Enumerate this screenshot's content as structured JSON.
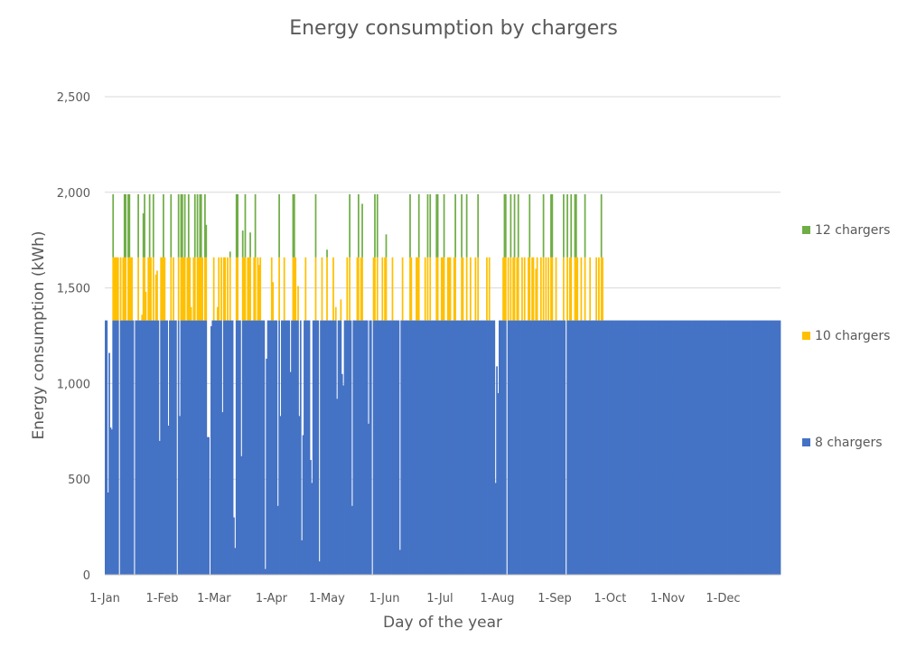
{
  "chart_data": {
    "type": "area",
    "stacked": true,
    "title": "Energy consumption by chargers",
    "xlabel": "Day of the year",
    "ylabel": "Energy consumption (kWh)",
    "ylim": [
      0,
      2500
    ],
    "yticks": [
      0,
      500,
      1000,
      1500,
      2000,
      2500
    ],
    "ytick_labels": [
      "0",
      "500",
      "1,000",
      "1,500",
      "2,000",
      "2,500"
    ],
    "xlim": [
      1,
      365
    ],
    "xticks": [
      {
        "day": 1,
        "label": "1-Jan"
      },
      {
        "day": 32,
        "label": "1-Feb"
      },
      {
        "day": 60,
        "label": "1-Mar"
      },
      {
        "day": 91,
        "label": "1-Apr"
      },
      {
        "day": 121,
        "label": "1-May"
      },
      {
        "day": 152,
        "label": "1-Jun"
      },
      {
        "day": 182,
        "label": "1-Jul"
      },
      {
        "day": 213,
        "label": "1-Aug"
      },
      {
        "day": 244,
        "label": "1-Sep"
      },
      {
        "day": 274,
        "label": "1-Oct"
      },
      {
        "day": 305,
        "label": "1-Nov"
      },
      {
        "day": 335,
        "label": "1-Dec"
      }
    ],
    "grid": true,
    "legend_position": "right",
    "series_caps": [
      1330,
      330,
      330
    ],
    "totals": [
      1330,
      1330,
      430,
      1160,
      770,
      760,
      1990,
      1660,
      1660,
      1660,
      1660,
      0,
      1660,
      1330,
      1660,
      1990,
      1990,
      1330,
      1990,
      1990,
      1660,
      1660,
      1330,
      0,
      1330,
      1330,
      1990,
      1330,
      1330,
      1360,
      1890,
      1990,
      1480,
      1330,
      1660,
      1990,
      1660,
      1330,
      1990,
      1330,
      1570,
      1590,
      1330,
      700,
      1660,
      1660,
      1990,
      1660,
      1330,
      1330,
      780,
      1330,
      1990,
      1330,
      1660,
      1330,
      1330,
      0,
      1990,
      830,
      1990,
      1990,
      1660,
      1990,
      1330,
      1660,
      1990,
      1660,
      1400,
      1330,
      1660,
      1990,
      1330,
      1990,
      1660,
      1990,
      1990,
      1660,
      1330,
      1990,
      1830,
      720,
      720,
      0,
      1300,
      1330,
      1660,
      1330,
      1330,
      1400,
      1660,
      1330,
      1660,
      850,
      1660,
      1660,
      1330,
      1660,
      1330,
      1690,
      1330,
      1330,
      300,
      140,
      1990,
      1990,
      1330,
      1330,
      620,
      1800,
      1660,
      1990,
      1330,
      1660,
      1660,
      1790,
      1330,
      1330,
      1660,
      1990,
      1330,
      1660,
      1620,
      1660,
      1330,
      1330,
      1330,
      30,
      1130,
      1330,
      1330,
      1330,
      1660,
      1530,
      1330,
      1330,
      1330,
      360,
      1990,
      830,
      1330,
      1330,
      1660,
      1330,
      1330,
      1330,
      1330,
      1060,
      1330,
      1990,
      1990,
      1660,
      1330,
      1510,
      830,
      1330,
      180,
      730,
      1330,
      1660,
      1330,
      1330,
      1330,
      600,
      480,
      1330,
      1330,
      1990,
      1330,
      1330,
      70,
      1330,
      1660,
      1330,
      1330,
      1330,
      1700,
      1330,
      1330,
      1330,
      1330,
      1660,
      1330,
      1400,
      920,
      1330,
      1330,
      1440,
      1050,
      990,
      1330,
      1330,
      1660,
      1330,
      1990,
      1330,
      360,
      1330,
      1330,
      1330,
      1660,
      1990,
      1330,
      1660,
      1940,
      1330,
      1330,
      1330,
      1330,
      790,
      1330,
      1330,
      0,
      1660,
      1990,
      1330,
      1990,
      1330,
      1330,
      1330,
      1660,
      1330,
      1660,
      1780,
      1330,
      1330,
      1330,
      1330,
      1660,
      1330,
      1330,
      1330,
      1330,
      1330,
      130,
      1330,
      1660,
      1330,
      1330,
      1330,
      1330,
      1330,
      1990,
      1660,
      1330,
      1330,
      1330,
      1660,
      1660,
      1990,
      1330,
      1330,
      1330,
      1330,
      1660,
      1330,
      1990,
      1330,
      1990,
      1330,
      1330,
      1330,
      1330,
      1990,
      1990,
      1330,
      1330,
      1660,
      1660,
      1990,
      1330,
      1330,
      1660,
      1660,
      1660,
      1330,
      1330,
      1660,
      1990,
      1330,
      1330,
      1330,
      1330,
      1990,
      1660,
      1330,
      1330,
      1990,
      1330,
      1330,
      1660,
      1330,
      1330,
      1330,
      1660,
      1330,
      1990,
      1330,
      1330,
      1330,
      1330,
      1330,
      1330,
      1660,
      1330,
      1660,
      1330,
      1330,
      1330,
      1330,
      480,
      1090,
      950,
      1330,
      1330,
      1330,
      1660,
      1990,
      1990,
      0,
      1660,
      1330,
      1990,
      1330,
      1660,
      1990,
      1330,
      1660,
      1990,
      1330,
      1330,
      1660,
      1330,
      1660,
      1330,
      1330,
      1660,
      1990,
      1330,
      1660,
      1660,
      1330,
      1600,
      1660,
      1330,
      1330,
      1660,
      1330,
      1990,
      1330,
      1660,
      1330,
      1660,
      1330,
      1990,
      1990,
      1330,
      1330,
      1660,
      1330,
      1330,
      1330,
      1330,
      1330,
      1990,
      1330,
      0,
      1990,
      1330,
      1660,
      1990,
      1330,
      1330,
      1990,
      1990,
      1660,
      1330,
      1330,
      1660,
      1330,
      1330,
      1990,
      1330,
      1330,
      1330,
      1660,
      1330,
      1330,
      1330,
      1330,
      1660,
      1330,
      1660,
      1330,
      1990,
      1660,
      1330,
      1330,
      1330,
      1330,
      1330,
      1330,
      1330,
      1330,
      1330,
      1330,
      1330,
      1330,
      1330,
      1330,
      1330,
      1330,
      1330,
      1330,
      1330,
      1330,
      1330,
      1330,
      1330,
      1330,
      1330,
      1330,
      1330,
      1330,
      1330,
      1330,
      1330,
      1330,
      1330,
      1330,
      1330,
      1330,
      1330,
      1330,
      1330,
      1330,
      1330,
      1330,
      1330,
      1330,
      1330,
      1330,
      1330,
      1330,
      1330,
      1330,
      1330,
      1330,
      1330,
      1330,
      1330,
      1330,
      1330,
      1330,
      1330,
      1330,
      1330,
      1330,
      1330,
      1330,
      1330,
      1330,
      1330,
      1330,
      1330,
      1330,
      1330,
      1330,
      1330,
      1330,
      1330,
      1330,
      1330,
      1330,
      1330,
      1330,
      1330,
      1330,
      1330,
      1330,
      1330,
      1330,
      1330,
      1330,
      1330,
      1330,
      1330,
      1330,
      1330,
      1330,
      1330,
      1330,
      1330,
      1330,
      1330,
      1330,
      1330,
      1330,
      1330,
      1330,
      1330,
      1330,
      1330,
      1330,
      1330,
      1330,
      1330,
      1330,
      1330,
      1330,
      1330,
      1330,
      1330,
      1330,
      1330,
      1330,
      1330,
      1330,
      1330,
      1330,
      1330,
      1330,
      1330,
      1330,
      1330,
      1330,
      1330,
      1330,
      1330,
      1330,
      1330,
      1330,
      1330,
      1330,
      1330,
      1330,
      1330
    ],
    "series": [
      {
        "name": "8 chargers",
        "color": "#4472C4"
      },
      {
        "name": "10 chargers",
        "color": "#FFC000"
      },
      {
        "name": "12 chargers",
        "color": "#70AD47"
      }
    ]
  }
}
